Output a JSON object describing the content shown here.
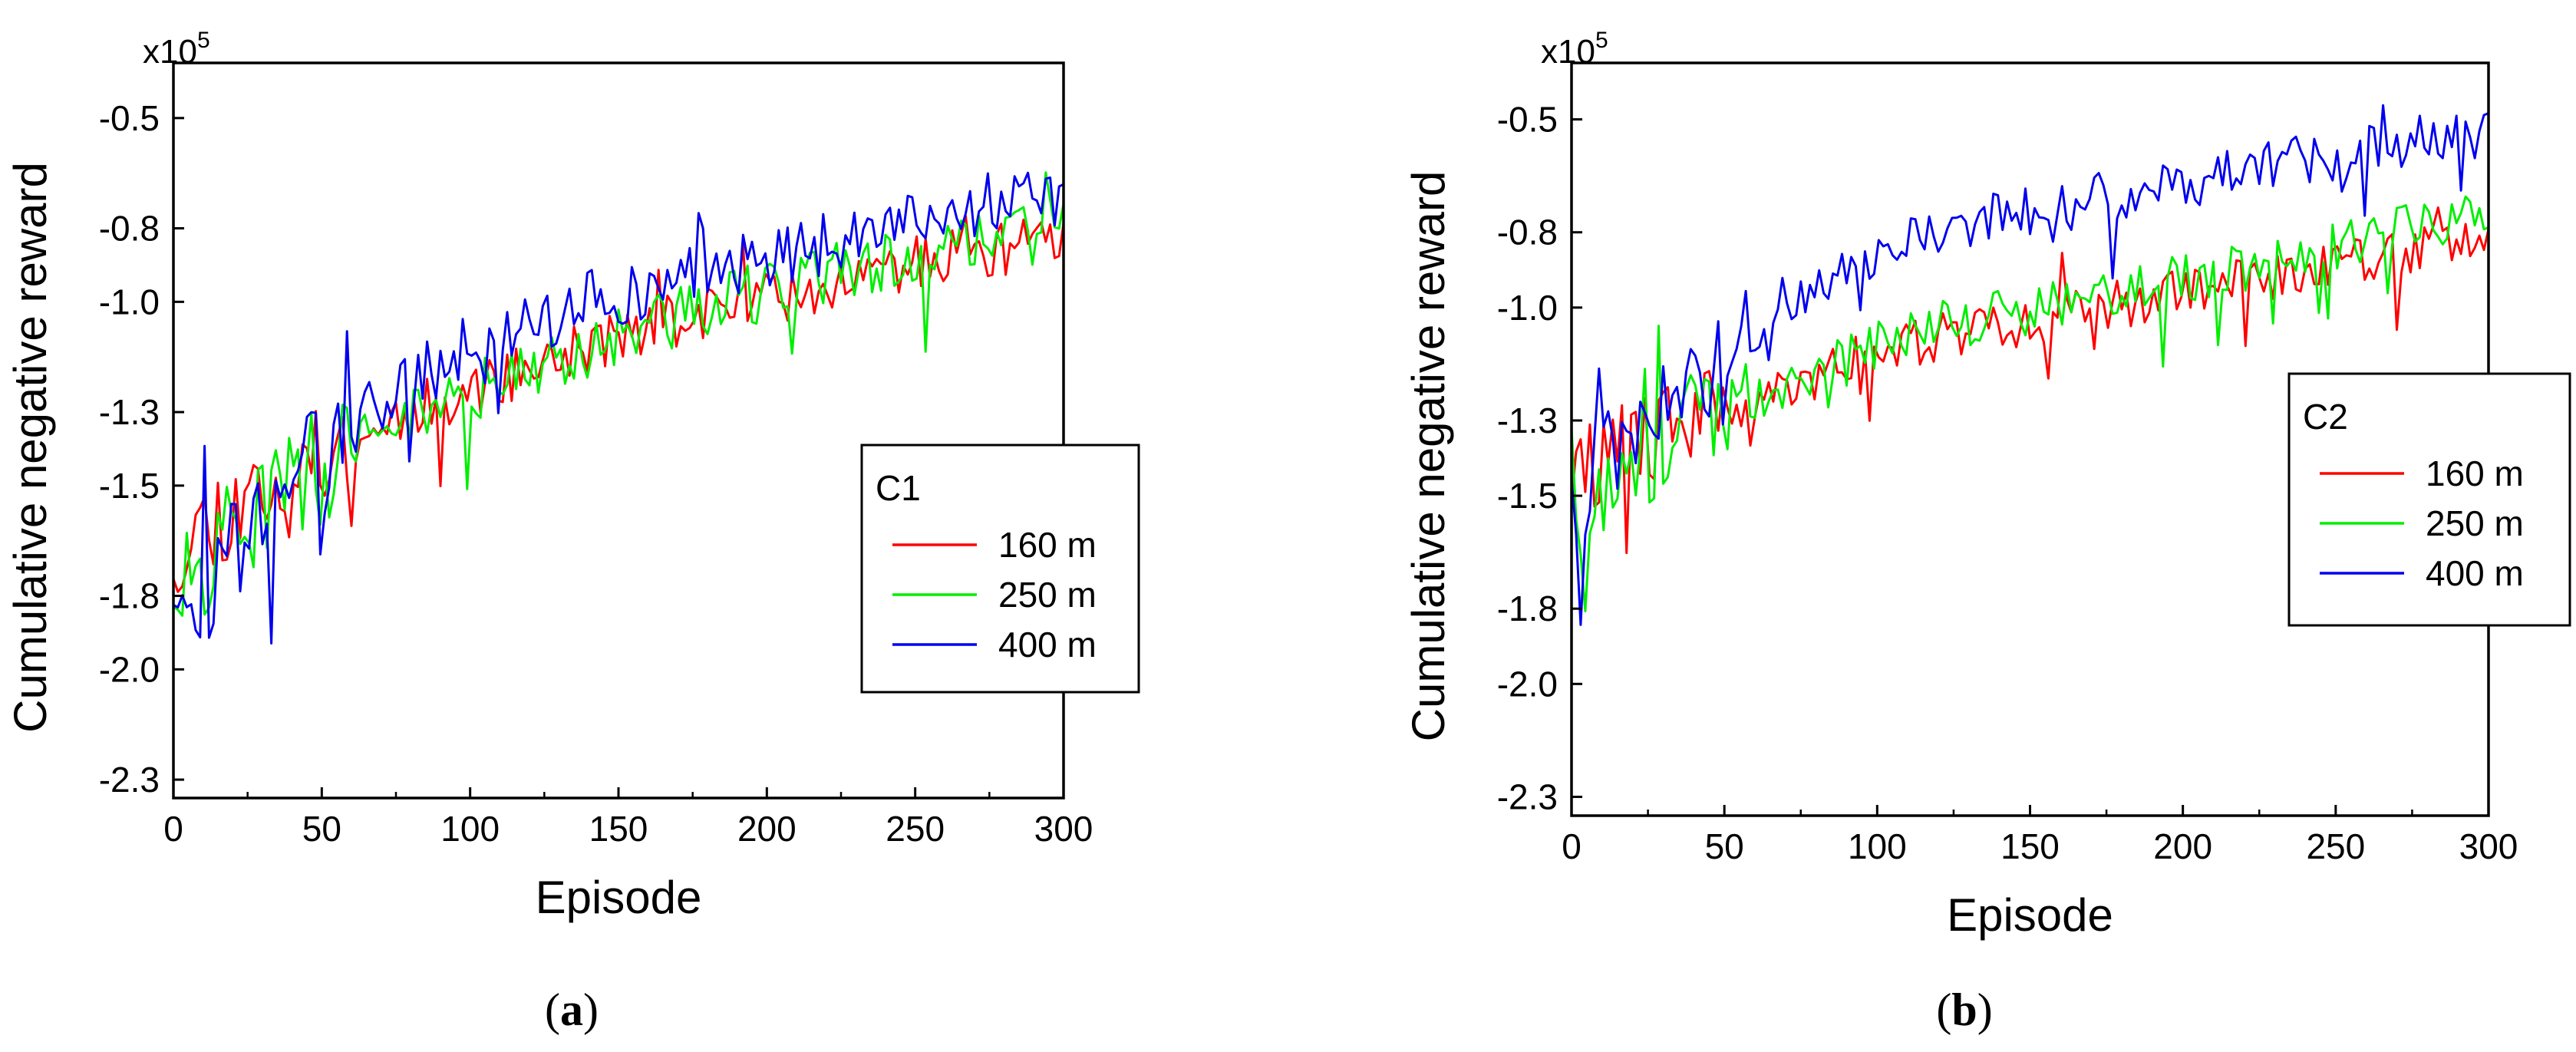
{
  "figure": {
    "panels": [
      {
        "label_paren_open": "(",
        "label_letter": "a",
        "label_paren_close": ")"
      },
      {
        "label_paren_open": "(",
        "label_letter": "b",
        "label_paren_close": ")"
      }
    ]
  },
  "chart_data": [
    {
      "type": "line",
      "panel": "a",
      "xlabel": "Episode",
      "ylabel": "Cumulative negative reward",
      "y_multiplier": "x10",
      "y_multiplier_exp": "5",
      "xlim": [
        0,
        300
      ],
      "ylim": [
        -2.35,
        -0.35
      ],
      "xticks": [
        0,
        50,
        100,
        150,
        200,
        250,
        300
      ],
      "xtick_labels": [
        "0",
        "50",
        "100",
        "150",
        "200",
        "250",
        "300"
      ],
      "yticks": [
        -2.3,
        -2.0,
        -1.8,
        -1.5,
        -1.3,
        -1.0,
        -0.8,
        -0.5
      ],
      "ytick_labels": [
        "-2.3",
        "-2.0",
        "-1.8",
        "-1.5",
        "-1.3",
        "-1.0",
        "-0.8",
        "-0.5"
      ],
      "legend": {
        "title": "C1",
        "position": "right"
      },
      "noise_seed": 11,
      "series": [
        {
          "name": "160 m",
          "color": "#ff0000",
          "x": [
            0,
            10,
            20,
            30,
            40,
            50,
            60,
            70,
            80,
            90,
            100,
            120,
            140,
            160,
            180,
            200,
            220,
            240,
            260,
            280,
            300
          ],
          "y": [
            -1.68,
            -1.6,
            -1.56,
            -1.5,
            -1.46,
            -1.42,
            -1.38,
            -1.33,
            -1.3,
            -1.27,
            -1.24,
            -1.18,
            -1.12,
            -1.07,
            -1.03,
            -0.99,
            -0.95,
            -0.91,
            -0.88,
            -0.86,
            -0.83
          ],
          "noise": 0.075
        },
        {
          "name": "250 m",
          "color": "#00ee00",
          "x": [
            0,
            10,
            20,
            30,
            40,
            50,
            60,
            70,
            80,
            90,
            100,
            120,
            140,
            160,
            180,
            200,
            220,
            240,
            260,
            280,
            300
          ],
          "y": [
            -1.75,
            -1.7,
            -1.63,
            -1.56,
            -1.5,
            -1.45,
            -1.4,
            -1.35,
            -1.31,
            -1.28,
            -1.25,
            -1.18,
            -1.12,
            -1.06,
            -1.02,
            -0.97,
            -0.93,
            -0.89,
            -0.86,
            -0.83,
            -0.8
          ],
          "noise": 0.085
        },
        {
          "name": "400 m",
          "color": "#0000ee",
          "x": [
            0,
            10,
            20,
            30,
            40,
            50,
            60,
            70,
            80,
            90,
            100,
            120,
            140,
            160,
            180,
            200,
            220,
            240,
            260,
            280,
            300
          ],
          "y": [
            -1.72,
            -1.78,
            -1.7,
            -1.58,
            -1.5,
            -1.44,
            -1.35,
            -1.27,
            -1.22,
            -1.17,
            -1.13,
            -1.06,
            -1.0,
            -0.96,
            -0.92,
            -0.88,
            -0.84,
            -0.8,
            -0.77,
            -0.74,
            -0.71
          ],
          "noise": 0.085
        }
      ]
    },
    {
      "type": "line",
      "panel": "b",
      "xlabel": "Episode",
      "ylabel": "Cumulative negative reward",
      "y_multiplier": "x10",
      "y_multiplier_exp": "5",
      "xlim": [
        0,
        300
      ],
      "ylim": [
        -2.35,
        -0.35
      ],
      "xticks": [
        0,
        50,
        100,
        150,
        200,
        250,
        300
      ],
      "xtick_labels": [
        "0",
        "50",
        "100",
        "150",
        "200",
        "250",
        "300"
      ],
      "yticks": [
        -2.3,
        -2.0,
        -1.8,
        -1.5,
        -1.3,
        -1.0,
        -0.8,
        -0.5
      ],
      "ytick_labels": [
        "-2.3",
        "-2.0",
        "-1.8",
        "-1.5",
        "-1.3",
        "-1.0",
        "-0.8",
        "-0.5"
      ],
      "legend": {
        "title": "C2",
        "position": "upper-right"
      },
      "noise_seed": 29,
      "series": [
        {
          "name": "160 m",
          "color": "#ff0000",
          "x": [
            0,
            10,
            20,
            30,
            40,
            50,
            60,
            70,
            80,
            90,
            100,
            120,
            140,
            160,
            180,
            200,
            220,
            240,
            260,
            280,
            300
          ],
          "y": [
            -1.45,
            -1.4,
            -1.36,
            -1.33,
            -1.3,
            -1.27,
            -1.24,
            -1.21,
            -1.18,
            -1.15,
            -1.12,
            -1.08,
            -1.05,
            -1.02,
            -0.99,
            -0.96,
            -0.93,
            -0.9,
            -0.87,
            -0.84,
            -0.8
          ],
          "noise": 0.065
        },
        {
          "name": "250 m",
          "color": "#00ee00",
          "x": [
            0,
            10,
            20,
            30,
            40,
            50,
            60,
            70,
            80,
            90,
            100,
            120,
            140,
            160,
            180,
            200,
            220,
            240,
            260,
            280,
            300
          ],
          "y": [
            -1.55,
            -1.48,
            -1.42,
            -1.36,
            -1.32,
            -1.28,
            -1.24,
            -1.2,
            -1.17,
            -1.14,
            -1.1,
            -1.06,
            -1.02,
            -0.99,
            -0.96,
            -0.92,
            -0.89,
            -0.85,
            -0.82,
            -0.78,
            -0.75
          ],
          "noise": 0.07
        },
        {
          "name": "400 m",
          "color": "#0000ee",
          "x": [
            0,
            10,
            20,
            30,
            40,
            50,
            60,
            70,
            80,
            90,
            100,
            120,
            140,
            160,
            180,
            200,
            220,
            240,
            260,
            280,
            300
          ],
          "y": [
            -1.5,
            -1.45,
            -1.35,
            -1.28,
            -1.2,
            -1.12,
            -1.05,
            -0.98,
            -0.94,
            -0.9,
            -0.86,
            -0.8,
            -0.76,
            -0.73,
            -0.7,
            -0.67,
            -0.64,
            -0.61,
            -0.58,
            -0.55,
            -0.53
          ],
          "noise": 0.07
        }
      ]
    }
  ]
}
